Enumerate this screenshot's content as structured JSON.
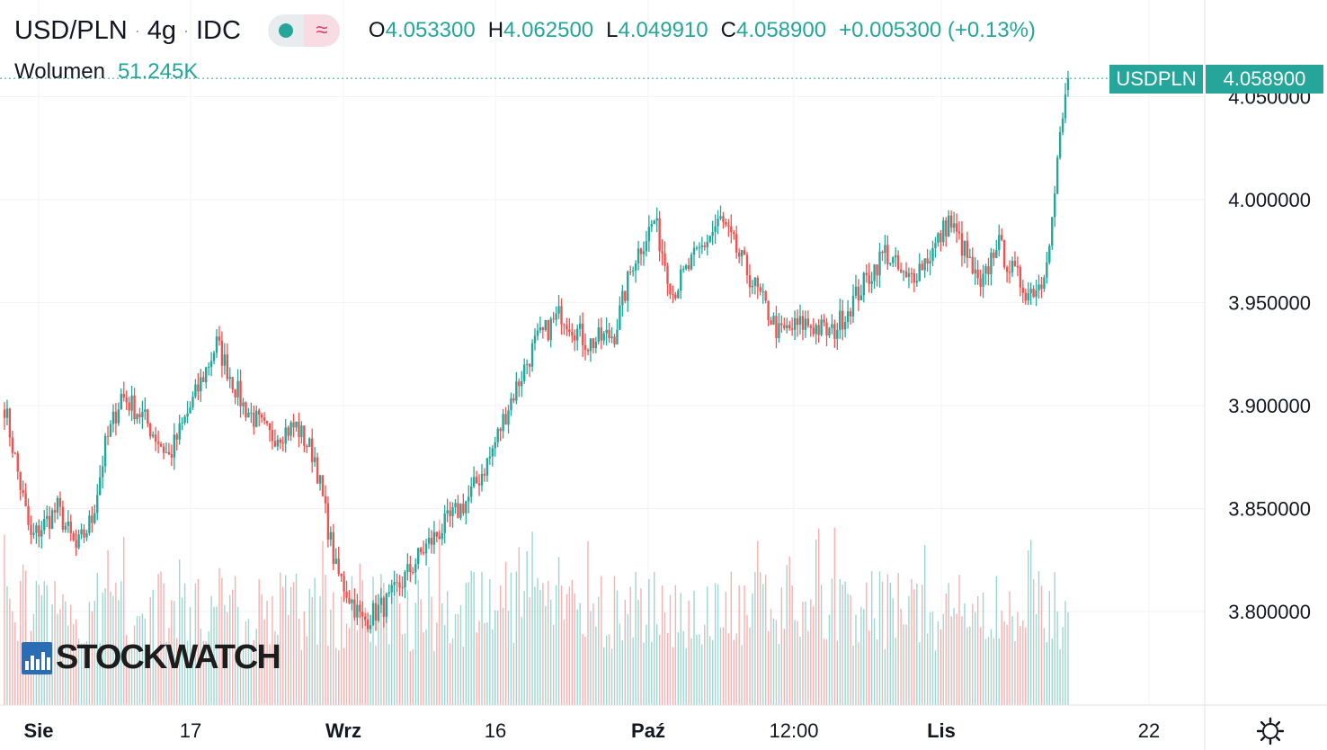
{
  "header": {
    "symbol": "USD/PLN",
    "interval": "4g",
    "source": "IDC",
    "sep": "·",
    "wave_glyph": "≈",
    "open_label": "O",
    "open": "4.053300",
    "high_label": "H",
    "high": "4.062500",
    "low_label": "L",
    "low": "4.049910",
    "close_label": "C",
    "close": "4.058900",
    "change": "+0.005300 (+0.13%)"
  },
  "volume": {
    "label": "Wolumen",
    "value": "51.245K"
  },
  "price_badge": {
    "symbol": "USDPLN",
    "price": "4.058900"
  },
  "logo": {
    "text": "STOCKWATCH",
    "icon": "bar-chart-logo-icon"
  },
  "settings": {
    "icon": "gear-icon"
  },
  "colors": {
    "up": "#26a69a",
    "down": "#ef5350",
    "grid": "#f0f3fa",
    "text": "#131722"
  },
  "chart_data": {
    "type": "candlestick",
    "yticks": [
      "4.050000",
      "4.000000",
      "3.950000",
      "3.900000",
      "3.850000",
      "3.800000"
    ],
    "ylim": [
      3.78,
      4.075
    ],
    "xticks": [
      "Sie",
      "17",
      "Wrz",
      "16",
      "Paź",
      "12:00",
      "Lis",
      "22"
    ],
    "grid": true,
    "anchors": [
      [
        0,
        3.9
      ],
      [
        10,
        3.835
      ],
      [
        20,
        3.85
      ],
      [
        27,
        3.83
      ],
      [
        33,
        3.845
      ],
      [
        38,
        3.88
      ],
      [
        44,
        3.905
      ],
      [
        52,
        3.895
      ],
      [
        62,
        3.875
      ],
      [
        72,
        3.905
      ],
      [
        80,
        3.93
      ],
      [
        90,
        3.9
      ],
      [
        100,
        3.885
      ],
      [
        110,
        3.89
      ],
      [
        117,
        3.875
      ],
      [
        125,
        3.82
      ],
      [
        135,
        3.795
      ],
      [
        145,
        3.805
      ],
      [
        158,
        3.83
      ],
      [
        175,
        3.855
      ],
      [
        183,
        3.875
      ],
      [
        190,
        3.9
      ],
      [
        200,
        3.93
      ],
      [
        210,
        3.945
      ],
      [
        220,
        3.93
      ],
      [
        230,
        3.935
      ],
      [
        237,
        3.97
      ],
      [
        245,
        3.99
      ],
      [
        252,
        3.955
      ],
      [
        262,
        3.975
      ],
      [
        270,
        3.99
      ],
      [
        280,
        3.965
      ],
      [
        292,
        3.935
      ],
      [
        302,
        3.94
      ],
      [
        312,
        3.935
      ],
      [
        322,
        3.955
      ],
      [
        332,
        3.975
      ],
      [
        340,
        3.96
      ],
      [
        350,
        3.975
      ],
      [
        356,
        3.99
      ],
      [
        362,
        3.975
      ],
      [
        368,
        3.955
      ],
      [
        374,
        3.98
      ],
      [
        380,
        3.965
      ],
      [
        386,
        3.955
      ],
      [
        391,
        3.96
      ],
      [
        395,
        3.99
      ],
      [
        398,
        4.03
      ],
      [
        401,
        4.058
      ]
    ],
    "last": {
      "open": 4.0533,
      "high": 4.0625,
      "low": 4.04991,
      "close": 4.0589
    }
  }
}
